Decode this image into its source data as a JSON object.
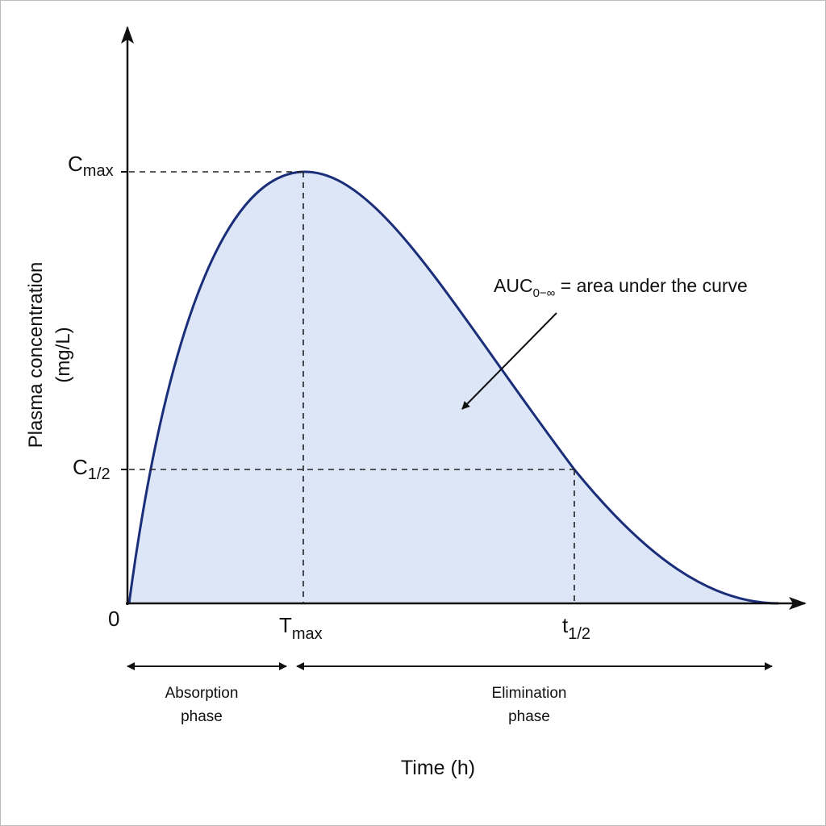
{
  "axis": {
    "y_title": [
      "Plasma concentration",
      "(mg/L)"
    ],
    "x_title": "Time (h)",
    "origin": "0"
  },
  "markers": {
    "cmax": {
      "main": "C",
      "sub": "max"
    },
    "chalf": {
      "main": "C",
      "sub": "1/2"
    },
    "tmax": {
      "main": "T",
      "sub": "max"
    },
    "thalf": {
      "main": "t",
      "sub": "1/2"
    }
  },
  "annotation": {
    "main": "AUC",
    "sub": "0−∞",
    "rest": " = area under the curve"
  },
  "phases": {
    "absorption": [
      "Absorption",
      "phase"
    ],
    "elimination": [
      "Elimination",
      "phase"
    ]
  }
}
